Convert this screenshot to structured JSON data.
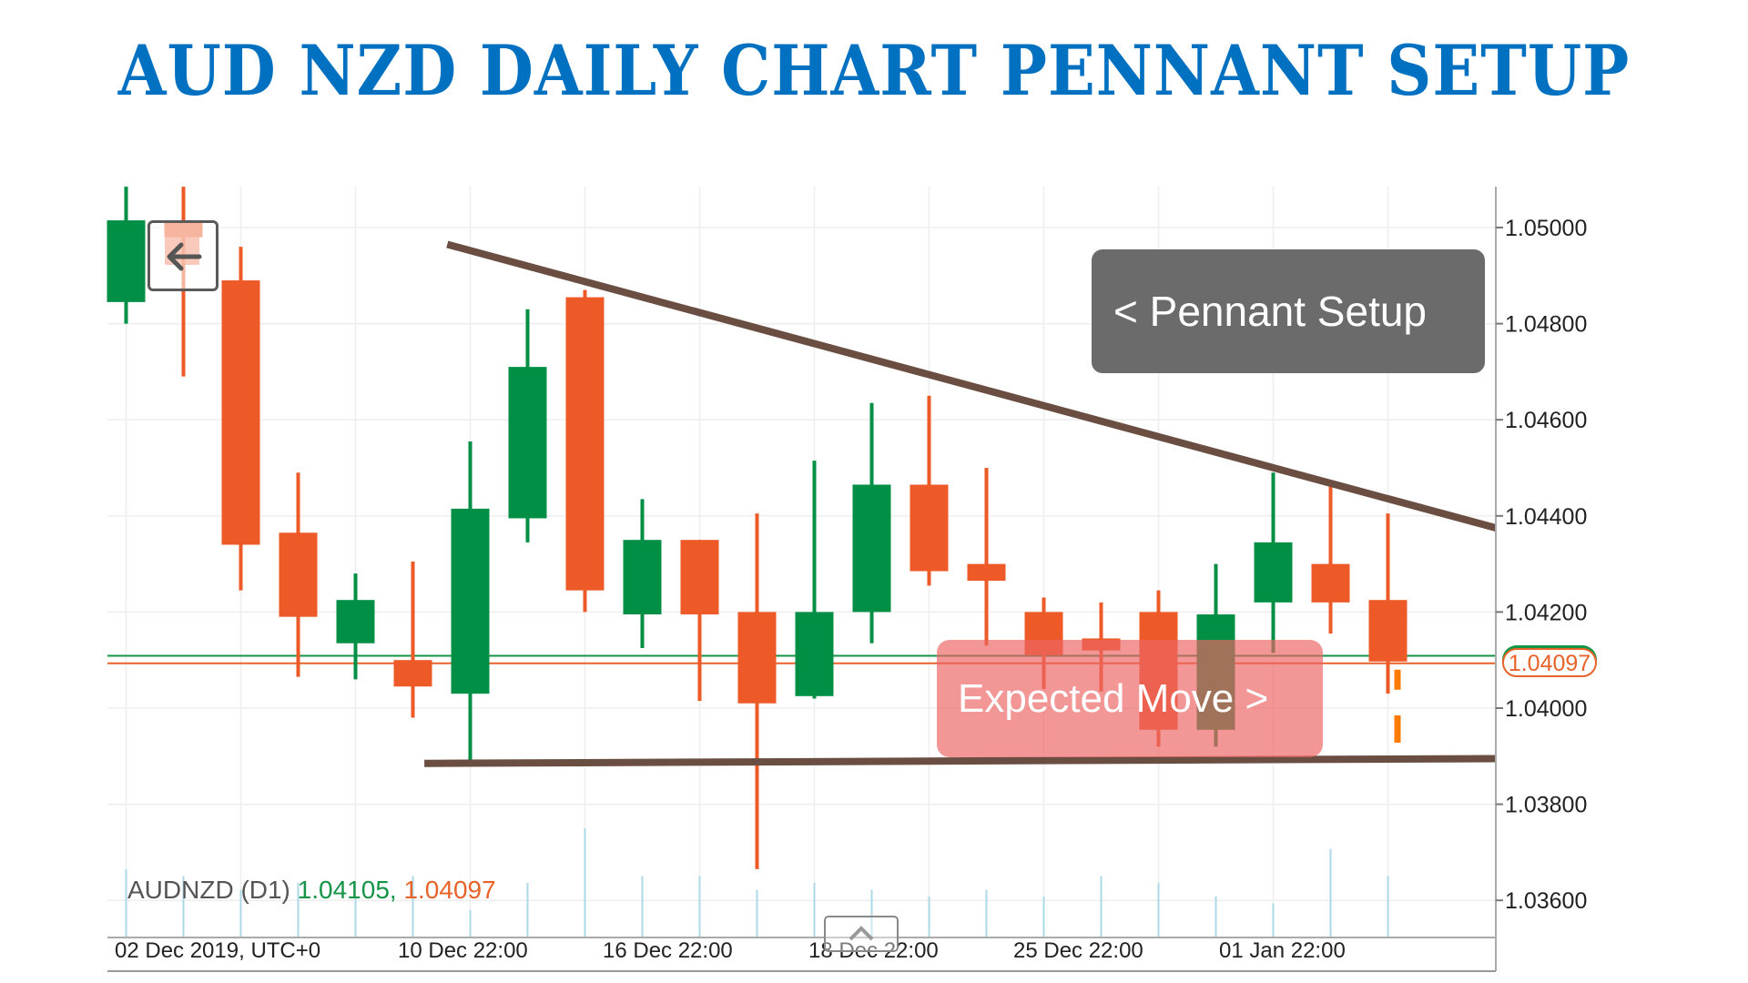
{
  "title": "AUD NZD DAILY CHART PENNANT SETUP",
  "colors": {
    "title": "#0070C0",
    "bull": "#008F45",
    "bear": "#ED5A27",
    "trendline": "#6B4E42",
    "grid": "#EEEEEE",
    "volume": "#ADD8E6",
    "bid_line": "#159447",
    "ask_line": "#E8632A"
  },
  "symbol_legend": {
    "symbol": "AUDNZD (D1)",
    "bid": "1.04105,",
    "ask": "1.04097"
  },
  "price_tag": "1.04097",
  "annotations": {
    "pennant_label": "< Pennant Setup",
    "expected_label": "Expected Move >"
  },
  "chart_data": {
    "type": "candlestick",
    "title": "AUD NZD DAILY CHART PENNANT SETUP",
    "symbol": "AUDNZD",
    "timeframe": "D1",
    "xlabel": "",
    "ylabel": "",
    "ylim": [
      1.0354,
      1.0509
    ],
    "y_ticks": [
      "1.05000",
      "1.04800",
      "1.04600",
      "1.04400",
      "1.04200",
      "1.04000",
      "1.03800",
      "1.03600"
    ],
    "x_ticks": [
      "02 Dec 2019, UTC+0",
      "10 Dec 22:00",
      "16 Dec 22:00",
      "18 Dec 22:00",
      "25 Dec 22:00",
      "01 Jan 22:00"
    ],
    "current_price": 1.04097,
    "bid": 1.04105,
    "ask": 1.04097,
    "candles": [
      {
        "o": 1.04845,
        "h": 1.05085,
        "l": 1.048,
        "c": 1.05015
      },
      {
        "o": 1.0501,
        "h": 1.05085,
        "l": 1.0469,
        "c": 1.0498
      },
      {
        "o": 1.0489,
        "h": 1.0496,
        "l": 1.04245,
        "c": 1.0434
      },
      {
        "o": 1.04365,
        "h": 1.0449,
        "l": 1.04065,
        "c": 1.0419
      },
      {
        "o": 1.04135,
        "h": 1.0428,
        "l": 1.0406,
        "c": 1.04225
      },
      {
        "o": 1.041,
        "h": 1.04305,
        "l": 1.0398,
        "c": 1.04045
      },
      {
        "o": 1.0403,
        "h": 1.04555,
        "l": 1.0389,
        "c": 1.04415
      },
      {
        "o": 1.04395,
        "h": 1.0483,
        "l": 1.04345,
        "c": 1.0471
      },
      {
        "o": 1.04855,
        "h": 1.0487,
        "l": 1.042,
        "c": 1.04245
      },
      {
        "o": 1.04195,
        "h": 1.04435,
        "l": 1.04125,
        "c": 1.0435
      },
      {
        "o": 1.0435,
        "h": 1.0435,
        "l": 1.04015,
        "c": 1.04195
      },
      {
        "o": 1.042,
        "h": 1.04405,
        "l": 1.03665,
        "c": 1.0401
      },
      {
        "o": 1.04025,
        "h": 1.04515,
        "l": 1.0402,
        "c": 1.042
      },
      {
        "o": 1.042,
        "h": 1.04635,
        "l": 1.04135,
        "c": 1.04465
      },
      {
        "o": 1.04465,
        "h": 1.0465,
        "l": 1.04255,
        "c": 1.04285
      },
      {
        "o": 1.043,
        "h": 1.045,
        "l": 1.0413,
        "c": 1.04265
      },
      {
        "o": 1.042,
        "h": 1.0423,
        "l": 1.0404,
        "c": 1.0411
      },
      {
        "o": 1.04145,
        "h": 1.0422,
        "l": 1.04035,
        "c": 1.0412
      },
      {
        "o": 1.042,
        "h": 1.04245,
        "l": 1.0392,
        "c": 1.03955
      },
      {
        "o": 1.03955,
        "h": 1.043,
        "l": 1.0392,
        "c": 1.04195
      },
      {
        "o": 1.0422,
        "h": 1.0449,
        "l": 1.04115,
        "c": 1.04345
      },
      {
        "o": 1.043,
        "h": 1.04465,
        "l": 1.04155,
        "c": 1.0422
      },
      {
        "o": 1.04225,
        "h": 1.04405,
        "l": 1.0403,
        "c": 1.04097
      }
    ],
    "volume_heights": [
      0.5,
      0.45,
      0.35,
      0.4,
      0.3,
      0.45,
      0.2,
      0.4,
      0.8,
      0.45,
      0.45,
      0.35,
      0.4,
      0.35,
      0.3,
      0.35,
      0.3,
      0.45,
      0.4,
      0.3,
      0.25,
      0.65,
      0.45
    ],
    "trendlines": [
      {
        "name": "resistance",
        "from": [
          5.6,
          1.04965
        ],
        "to": [
          24.9,
          1.04375
        ]
      },
      {
        "name": "support",
        "from": [
          5.2,
          1.03885
        ],
        "to": [
          24.9,
          1.03895
        ]
      }
    ],
    "annotations": [
      "< Pennant Setup",
      "Expected Move >"
    ],
    "grid": true
  }
}
